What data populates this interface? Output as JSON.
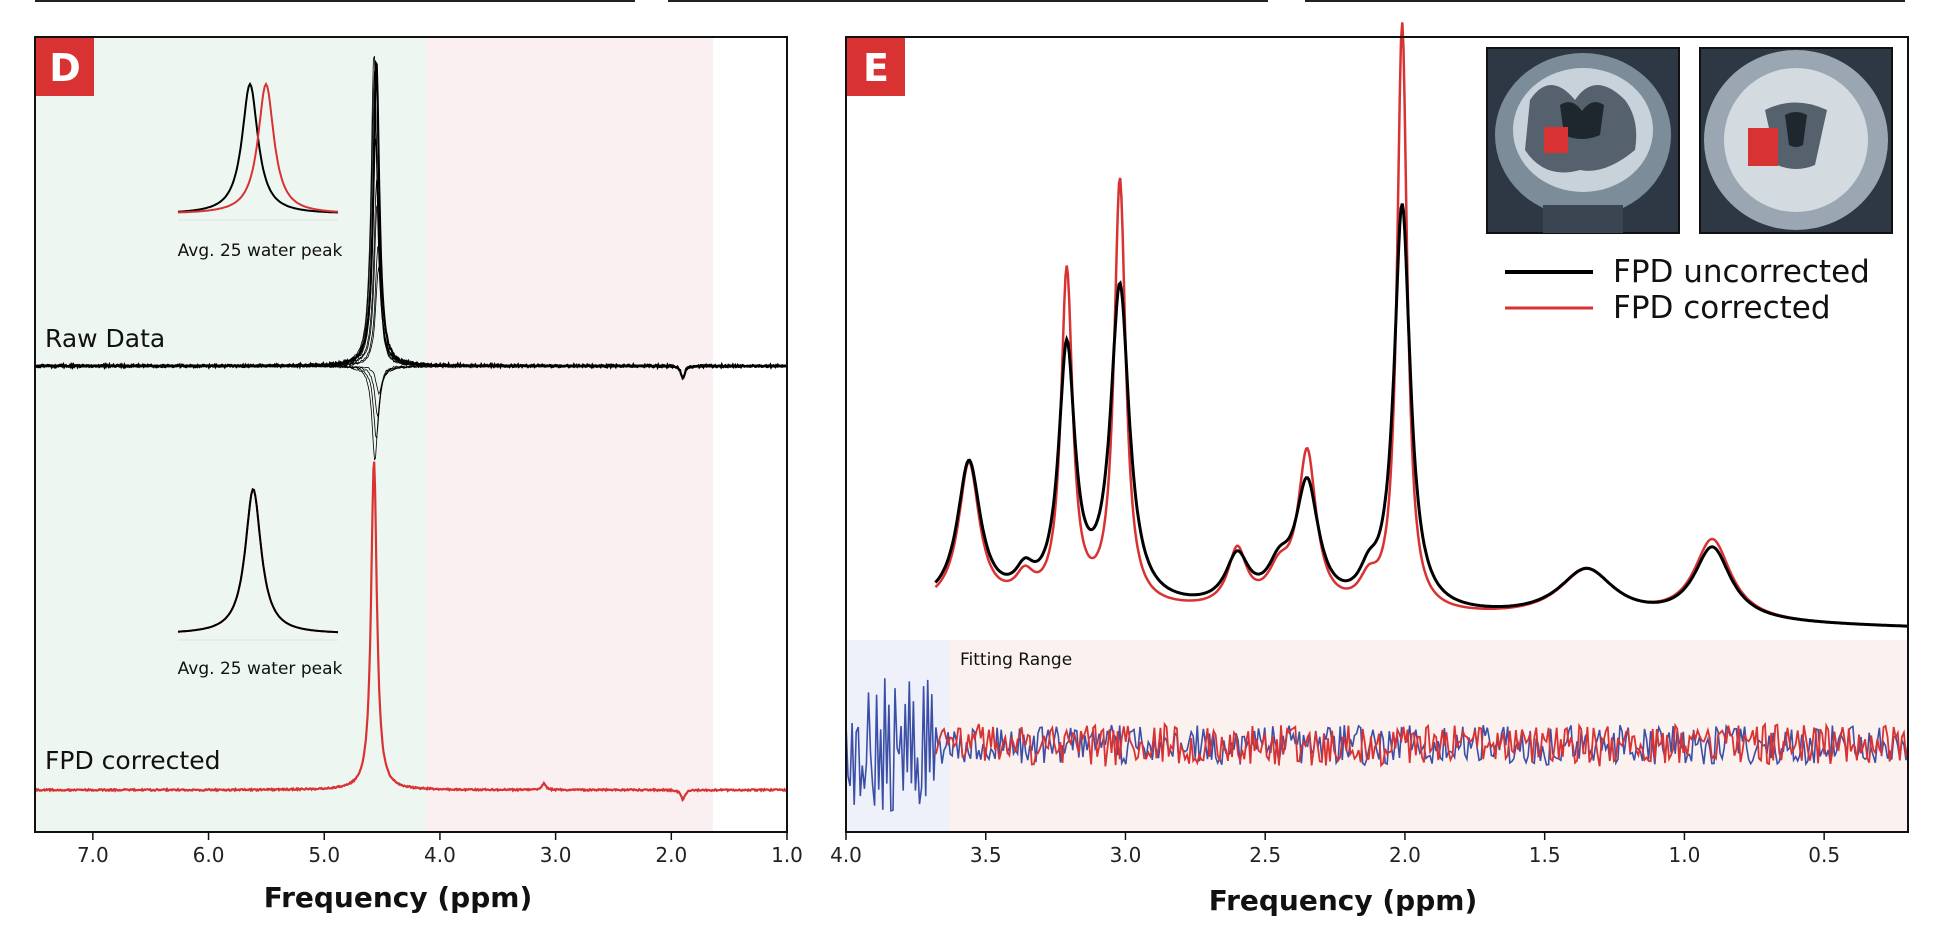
{
  "chart_data": [
    {
      "panel": "D",
      "type": "line",
      "xlabel": "Frequency (ppm)",
      "xlim": [
        7.5,
        1.0
      ],
      "x_reversed": true,
      "x_ticks": [
        "7.0",
        "6.0",
        "5.0",
        "4.0",
        "3.0",
        "2.0",
        "1.0"
      ],
      "shaded_regions": [
        {
          "from": 7.5,
          "to": 4.1,
          "color": "#eef6f1"
        },
        {
          "from": 4.1,
          "to": 1.65,
          "color": "#fbf0f1"
        }
      ],
      "series": [
        {
          "name": "Raw Data",
          "color": "#000000",
          "peaks": [
            {
              "ppm": 4.55,
              "height": 1.0,
              "width": 0.03
            },
            {
              "ppm": 1.9,
              "height": -0.04,
              "width": 0.02
            }
          ]
        },
        {
          "name": "FPD corrected",
          "color": "#d93232",
          "peaks": [
            {
              "ppm": 4.57,
              "height": 1.0,
              "width": 0.03
            },
            {
              "ppm": 3.1,
              "height": 0.02,
              "width": 0.02
            },
            {
              "ppm": 1.9,
              "height": -0.03,
              "width": 0.02
            }
          ]
        }
      ],
      "insets": [
        {
          "caption": "Avg. 25 water peak",
          "curves": [
            {
              "color": "#000000",
              "center": 0.45
            },
            {
              "color": "#d93232",
              "center": 0.55
            }
          ]
        },
        {
          "caption": "Avg. 25 water peak",
          "curves": [
            {
              "color": "#d93232",
              "center": 0.47
            },
            {
              "color": "#000000",
              "center": 0.47
            }
          ]
        }
      ]
    },
    {
      "panel": "E",
      "type": "line",
      "xlabel": "Frequency (ppm)",
      "xlim": [
        4.0,
        0.2
      ],
      "x_reversed": true,
      "x_ticks": [
        "4.0",
        "3.5",
        "3.0",
        "2.5",
        "2.0",
        "1.5",
        "1.0",
        "0.5"
      ],
      "annotation": "Fitting Range",
      "fitting_range": [
        3.68,
        0.2
      ],
      "series": [
        {
          "name": "FPD uncorrected",
          "color": "#000000",
          "peaks": [
            {
              "ppm": 3.56,
              "height": 0.35
            },
            {
              "ppm": 3.21,
              "height": 0.62
            },
            {
              "ppm": 3.02,
              "height": 0.78
            },
            {
              "ppm": 2.6,
              "height": 0.12
            },
            {
              "ppm": 2.35,
              "height": 0.3
            },
            {
              "ppm": 2.01,
              "height": 1.0
            },
            {
              "ppm": 1.35,
              "height": 0.12
            },
            {
              "ppm": 0.9,
              "height": 0.18
            }
          ]
        },
        {
          "name": "FPD corrected",
          "color": "#d93232",
          "peaks": [
            {
              "ppm": 3.56,
              "height": 0.35
            },
            {
              "ppm": 3.21,
              "height": 0.82
            },
            {
              "ppm": 3.02,
              "height": 1.05
            },
            {
              "ppm": 2.6,
              "height": 0.14
            },
            {
              "ppm": 2.35,
              "height": 0.38
            },
            {
              "ppm": 2.01,
              "height": 1.45
            },
            {
              "ppm": 1.35,
              "height": 0.12
            },
            {
              "ppm": 0.9,
              "height": 0.2
            }
          ]
        }
      ],
      "residual_series": [
        {
          "color": "#3b4fa6"
        },
        {
          "color": "#d93232"
        }
      ]
    }
  ],
  "panels": {
    "d": {
      "label": "D",
      "raw_label": "Raw Data",
      "corrected_label": "FPD corrected",
      "inset_caption_1": "Avg. 25 water peak",
      "inset_caption_2": "Avg. 25 water peak",
      "xlabel": "Frequency (ppm)"
    },
    "e": {
      "label": "E",
      "legend_1": "FPD uncorrected",
      "legend_2": "FPD corrected",
      "fitting_range": "Fitting Range",
      "xlabel": "Frequency (ppm)"
    }
  },
  "colors": {
    "black_series": "#000000",
    "red_series": "#d93232",
    "blue_residual": "#3b4fa6",
    "panel_label_bg": "#d93232"
  }
}
